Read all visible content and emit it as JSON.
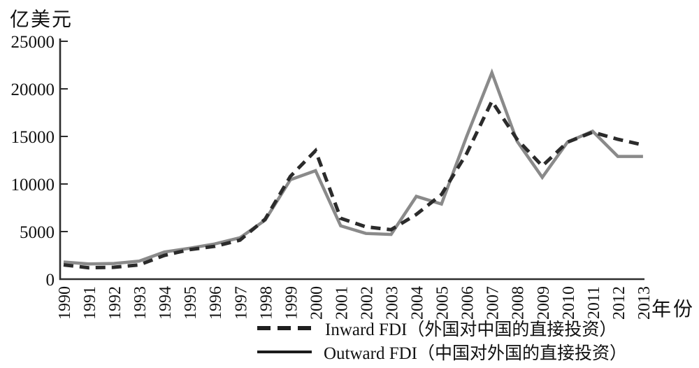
{
  "figure": {
    "unit_label": "亿美元",
    "xaxis_label": "年份"
  },
  "legend": {
    "items": [
      {
        "key": "inward",
        "style": "dashed",
        "color": "#1f1f1f",
        "label": "Inward FDI（外国对中国的直接投资）"
      },
      {
        "key": "outward",
        "style": "solid",
        "color": "#1c1c1c",
        "label": "Outward FDI（中国对外国的直接投资）"
      }
    ]
  },
  "chart_data": {
    "type": "line",
    "title": "",
    "xlabel": "年份",
    "ylabel": "亿美元",
    "x": [
      1990,
      1991,
      1992,
      1993,
      1994,
      1995,
      1996,
      1997,
      1998,
      1999,
      2000,
      2001,
      2002,
      2003,
      2004,
      2005,
      2006,
      2007,
      2008,
      2009,
      2010,
      2011,
      2012,
      2013
    ],
    "series": [
      {
        "name": "Inward FDI（外国对中国的直接投资）",
        "key": "inward",
        "line": "dashed",
        "color": "#2b2b2b",
        "values": [
          1500,
          1200,
          1250,
          1500,
          2500,
          3100,
          3450,
          4100,
          6300,
          10800,
          13500,
          6400,
          5500,
          5200,
          6800,
          8900,
          13200,
          18700,
          14700,
          11900,
          14400,
          15450,
          14700,
          14100
        ]
      },
      {
        "name": "Outward FDI（中国对外国的直接投资）",
        "key": "outward",
        "line": "solid",
        "color": "#8a8a8a",
        "values": [
          1800,
          1600,
          1650,
          1900,
          2850,
          3250,
          3700,
          4350,
          6200,
          10450,
          11400,
          5600,
          4800,
          4700,
          8700,
          7900,
          15000,
          21700,
          14500,
          10700,
          14400,
          15550,
          12900,
          12900
        ]
      }
    ],
    "ylim": [
      0,
      25000
    ],
    "yticks": [
      0,
      5000,
      10000,
      15000,
      20000,
      25000
    ],
    "grid": false,
    "legend_position": "bottom",
    "x_tick_rotation": 90
  }
}
